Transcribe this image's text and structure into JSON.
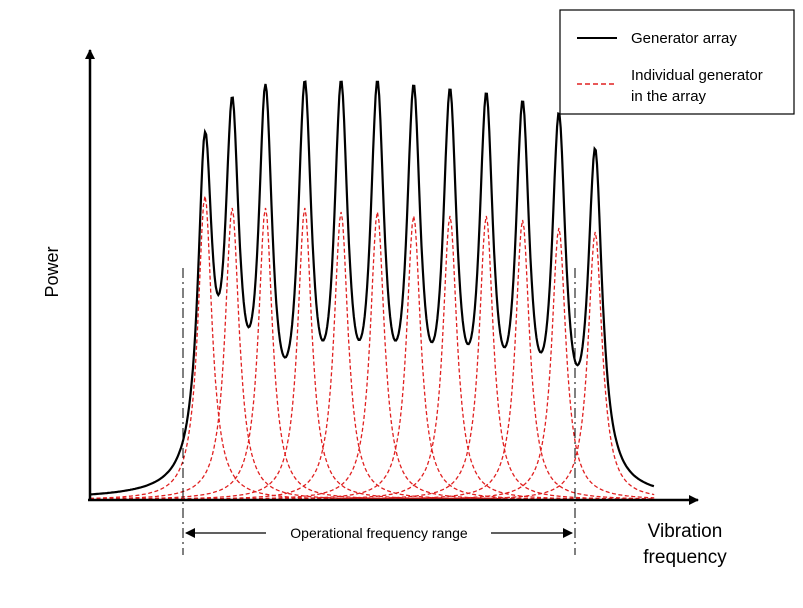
{
  "chart_data": {
    "type": "line",
    "title": "",
    "xlabel": "Vibration frequency",
    "ylabel": "Power",
    "grid": false,
    "legend_position": "top-right",
    "legend": [
      {
        "label": "Generator array",
        "style": "solid",
        "color": "#000000"
      },
      {
        "label": "Individual generator in the array",
        "style": "dashed",
        "color": "#e02020"
      }
    ],
    "annotation": "Operational frequency range",
    "individual_generators": {
      "count": 12,
      "resonant_frequencies": [
        0.19,
        0.235,
        0.29,
        0.355,
        0.415,
        0.475,
        0.535,
        0.595,
        0.655,
        0.715,
        0.775,
        0.835
      ],
      "peak_power": [
        0.76,
        0.73,
        0.73,
        0.73,
        0.72,
        0.72,
        0.71,
        0.71,
        0.71,
        0.7,
        0.68,
        0.67
      ]
    },
    "array_response": {
      "peak_frequencies": [
        0.19,
        0.235,
        0.29,
        0.355,
        0.415,
        0.475,
        0.535,
        0.595,
        0.655,
        0.715,
        0.775,
        0.835
      ],
      "peak_power": [
        0.92,
        1.01,
        1.04,
        1.05,
        1.05,
        1.05,
        1.04,
        1.03,
        1.02,
        1.0,
        0.97,
        0.88
      ]
    },
    "operational_range": {
      "start": 0.175,
      "end": 0.85
    }
  },
  "colors": {
    "array_line": "#000000",
    "individual_line": "#e02020",
    "axes": "#000000"
  }
}
